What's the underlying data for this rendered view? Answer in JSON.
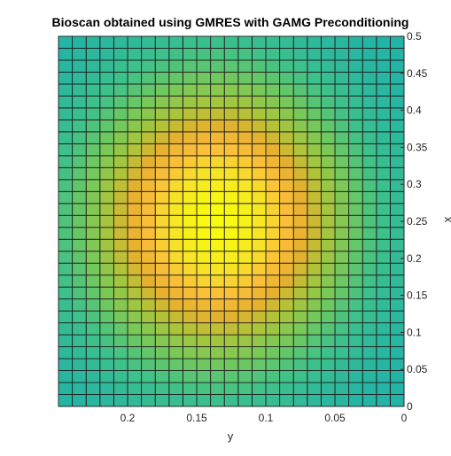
{
  "chart_data": {
    "type": "heatmap",
    "title": "Bioscan obtained using GMRES with GAMG Preconditioning",
    "xlabel": "y",
    "ylabel": "x",
    "x_direction": "reversed",
    "y_axis_location": "right",
    "xlim": [
      0,
      0.25
    ],
    "ylim": [
      0,
      0.5
    ],
    "x_ticks": [
      0.2,
      0.15,
      0.1,
      0.05,
      0
    ],
    "x_tick_labels": [
      "0.2",
      "0.15",
      "0.1",
      "0.05",
      "0"
    ],
    "y_ticks": [
      0,
      0.05,
      0.1,
      0.15,
      0.2,
      0.25,
      0.3,
      0.35,
      0.4,
      0.45,
      0.5
    ],
    "y_tick_labels": [
      "0",
      "0.05",
      "0.1",
      "0.15",
      "0.2",
      "0.25",
      "0.3",
      "0.35",
      "0.4",
      "0.45",
      "0.5"
    ],
    "grid_columns": 25,
    "grid_rows": 31,
    "shading": "faceted",
    "colormap": "parula",
    "colormap_stops": [
      "#20b2aa",
      "#3ec18a",
      "#75c95a",
      "#acc53a",
      "#e6b02e",
      "#fbbf3a",
      "#f6e428",
      "#f9fb0e"
    ],
    "field": "gaussian peak centred at y≈0.135, x≈0.25; value = exp(-(dy/0.085)^2 - (dx/0.17)^2)"
  }
}
